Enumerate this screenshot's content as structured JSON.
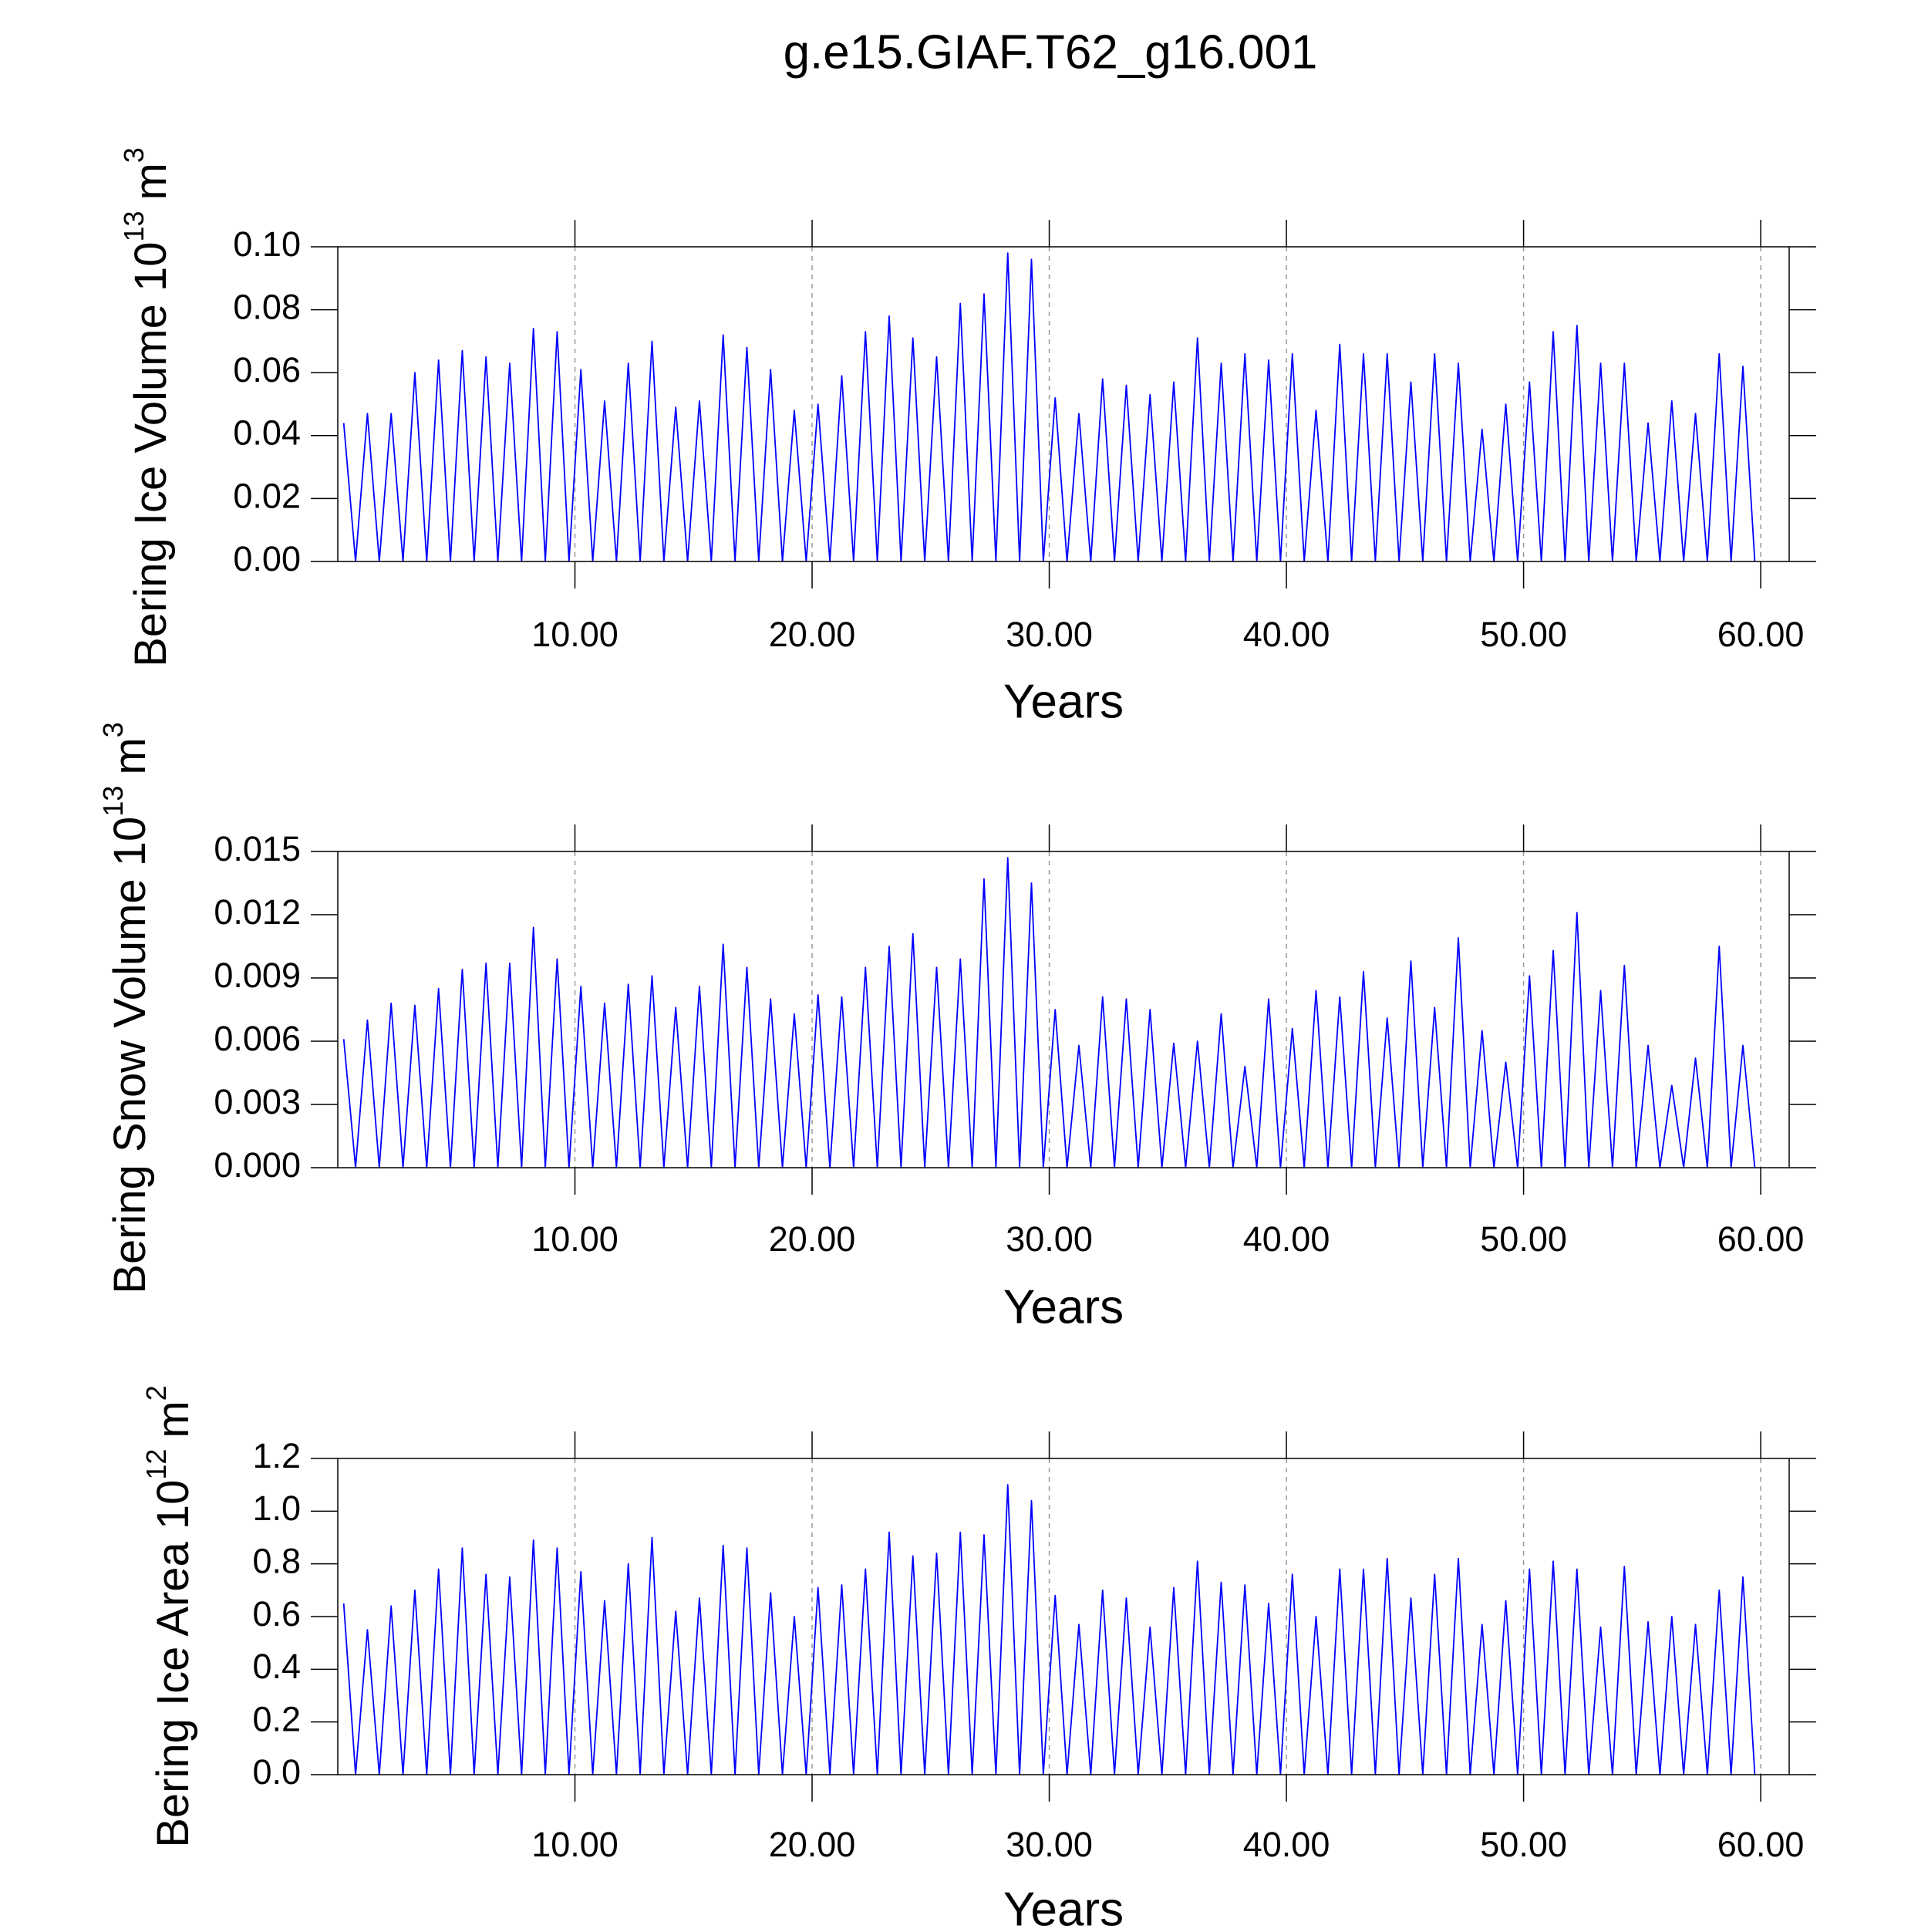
{
  "title": "g.e15.GIAF.T62_g16.001",
  "chart_data": [
    {
      "type": "line",
      "ylabel": "Bering Ice Volume 10",
      "ylabel_exp": "13",
      "ylabel_unit": "m",
      "ylabel_unit_exp": "3",
      "xlabel": "Years",
      "xlim": [
        0,
        61.2
      ],
      "ylim": [
        0,
        0.1
      ],
      "xticks": [
        {
          "value": 10,
          "label": "10.00"
        },
        {
          "value": 20,
          "label": "20.00"
        },
        {
          "value": 30,
          "label": "30.00"
        },
        {
          "value": 40,
          "label": "40.00"
        },
        {
          "value": 50,
          "label": "50.00"
        },
        {
          "value": 60,
          "label": "60.00"
        }
      ],
      "yticks": [
        {
          "value": 0,
          "label": "0.00"
        },
        {
          "value": 0.02,
          "label": "0.02"
        },
        {
          "value": 0.04,
          "label": "0.04"
        },
        {
          "value": 0.06,
          "label": "0.06"
        },
        {
          "value": 0.08,
          "label": "0.08"
        },
        {
          "value": 0.1,
          "label": "0.10"
        }
      ],
      "grid": true,
      "color": "#0000ff",
      "x": [
        0.25,
        0.75,
        1.25,
        1.75,
        2.25,
        2.75,
        3.25,
        3.75,
        4.25,
        4.75,
        5.25,
        5.75,
        6.25,
        6.75,
        7.25,
        7.75,
        8.25,
        8.75,
        9.25,
        9.75,
        10.25,
        10.75,
        11.25,
        11.75,
        12.25,
        12.75,
        13.25,
        13.75,
        14.25,
        14.75,
        15.25,
        15.75,
        16.25,
        16.75,
        17.25,
        17.75,
        18.25,
        18.75,
        19.25,
        19.75,
        20.25,
        20.75,
        21.25,
        21.75,
        22.25,
        22.75,
        23.25,
        23.75,
        24.25,
        24.75,
        25.25,
        25.75,
        26.25,
        26.75,
        27.25,
        27.75,
        28.25,
        28.75,
        29.25,
        29.75,
        30.25,
        30.75,
        31.25,
        31.75,
        32.25,
        32.75,
        33.25,
        33.75,
        34.25,
        34.75,
        35.25,
        35.75,
        36.25,
        36.75,
        37.25,
        37.75,
        38.25,
        38.75,
        39.25,
        39.75,
        40.25,
        40.75,
        41.25,
        41.75,
        42.25,
        42.75,
        43.25,
        43.75,
        44.25,
        44.75,
        45.25,
        45.75,
        46.25,
        46.75,
        47.25,
        47.75,
        48.25,
        48.75,
        49.25,
        49.75,
        50.25,
        50.75,
        51.25,
        51.75,
        52.25,
        52.75,
        53.25,
        53.75,
        54.25,
        54.75,
        55.25,
        55.75,
        56.25,
        56.75,
        57.25,
        57.75,
        58.25,
        58.75,
        59.25,
        59.75
      ],
      "values": [
        0.044,
        0,
        0.047,
        0,
        0.047,
        0,
        0.06,
        0,
        0.064,
        0,
        0.067,
        0,
        0.065,
        0,
        0.063,
        0,
        0.074,
        0,
        0.073,
        0,
        0.061,
        0,
        0.051,
        0,
        0.063,
        0,
        0.07,
        0,
        0.049,
        0,
        0.051,
        0,
        0.072,
        0,
        0.068,
        0,
        0.061,
        0,
        0.048,
        0,
        0.05,
        0,
        0.059,
        0,
        0.073,
        0,
        0.078,
        0,
        0.071,
        0,
        0.065,
        0,
        0.082,
        0,
        0.085,
        0,
        0.098,
        0,
        0.096,
        0,
        0.052,
        0,
        0.047,
        0,
        0.058,
        0,
        0.056,
        0,
        0.053,
        0,
        0.057,
        0,
        0.071,
        0,
        0.063,
        0,
        0.066,
        0,
        0.064,
        0,
        0.066,
        0,
        0.048,
        0,
        0.069,
        0,
        0.066,
        0,
        0.066,
        0,
        0.057,
        0,
        0.066,
        0,
        0.063,
        0,
        0.042,
        0,
        0.05,
        0,
        0.057,
        0,
        0.073,
        0,
        0.075,
        0,
        0.063,
        0,
        0.063,
        0,
        0.044,
        0,
        0.051,
        0,
        0.047,
        0,
        0.066,
        0,
        0.062,
        0
      ]
    },
    {
      "type": "line",
      "ylabel": "Bering Snow Volume 10",
      "ylabel_exp": "13",
      "ylabel_unit": "m",
      "ylabel_unit_exp": "3",
      "xlabel": "Years",
      "xlim": [
        0,
        61.2
      ],
      "ylim": [
        0,
        0.015
      ],
      "xticks": [
        {
          "value": 10,
          "label": "10.00"
        },
        {
          "value": 20,
          "label": "20.00"
        },
        {
          "value": 30,
          "label": "30.00"
        },
        {
          "value": 40,
          "label": "40.00"
        },
        {
          "value": 50,
          "label": "50.00"
        },
        {
          "value": 60,
          "label": "60.00"
        }
      ],
      "yticks": [
        {
          "value": 0,
          "label": "0.000"
        },
        {
          "value": 0.003,
          "label": "0.003"
        },
        {
          "value": 0.006,
          "label": "0.006"
        },
        {
          "value": 0.009,
          "label": "0.009"
        },
        {
          "value": 0.012,
          "label": "0.012"
        },
        {
          "value": 0.015,
          "label": "0.015"
        }
      ],
      "grid": true,
      "color": "#0000ff",
      "x": [
        0.25,
        0.75,
        1.25,
        1.75,
        2.25,
        2.75,
        3.25,
        3.75,
        4.25,
        4.75,
        5.25,
        5.75,
        6.25,
        6.75,
        7.25,
        7.75,
        8.25,
        8.75,
        9.25,
        9.75,
        10.25,
        10.75,
        11.25,
        11.75,
        12.25,
        12.75,
        13.25,
        13.75,
        14.25,
        14.75,
        15.25,
        15.75,
        16.25,
        16.75,
        17.25,
        17.75,
        18.25,
        18.75,
        19.25,
        19.75,
        20.25,
        20.75,
        21.25,
        21.75,
        22.25,
        22.75,
        23.25,
        23.75,
        24.25,
        24.75,
        25.25,
        25.75,
        26.25,
        26.75,
        27.25,
        27.75,
        28.25,
        28.75,
        29.25,
        29.75,
        30.25,
        30.75,
        31.25,
        31.75,
        32.25,
        32.75,
        33.25,
        33.75,
        34.25,
        34.75,
        35.25,
        35.75,
        36.25,
        36.75,
        37.25,
        37.75,
        38.25,
        38.75,
        39.25,
        39.75,
        40.25,
        40.75,
        41.25,
        41.75,
        42.25,
        42.75,
        43.25,
        43.75,
        44.25,
        44.75,
        45.25,
        45.75,
        46.25,
        46.75,
        47.25,
        47.75,
        48.25,
        48.75,
        49.25,
        49.75,
        50.25,
        50.75,
        51.25,
        51.75,
        52.25,
        52.75,
        53.25,
        53.75,
        54.25,
        54.75,
        55.25,
        55.75,
        56.25,
        56.75,
        57.25,
        57.75,
        58.25,
        58.75,
        59.25,
        59.75
      ],
      "values": [
        0.0061,
        0,
        0.007,
        0,
        0.0078,
        0,
        0.0077,
        0,
        0.0085,
        0,
        0.0094,
        0,
        0.0097,
        0,
        0.0097,
        0,
        0.0114,
        0,
        0.0099,
        0,
        0.0086,
        0,
        0.0078,
        0,
        0.0087,
        0,
        0.0091,
        0,
        0.0076,
        0,
        0.0086,
        0,
        0.0106,
        0,
        0.0095,
        0,
        0.008,
        0,
        0.0073,
        0,
        0.0082,
        0,
        0.0081,
        0,
        0.0095,
        0,
        0.0105,
        0,
        0.0111,
        0,
        0.0095,
        0,
        0.0099,
        0,
        0.0137,
        0,
        0.0147,
        0,
        0.0135,
        0,
        0.0075,
        0,
        0.0058,
        0,
        0.0081,
        0,
        0.008,
        0,
        0.0075,
        0,
        0.0059,
        0,
        0.006,
        0,
        0.0073,
        0,
        0.0048,
        0,
        0.008,
        0,
        0.0066,
        0,
        0.0084,
        0,
        0.0081,
        0,
        0.0093,
        0,
        0.0071,
        0,
        0.0098,
        0,
        0.0076,
        0,
        0.0109,
        0,
        0.0065,
        0,
        0.005,
        0,
        0.0091,
        0,
        0.0103,
        0,
        0.0121,
        0,
        0.0084,
        0,
        0.0096,
        0,
        0.0058,
        0,
        0.0039,
        0,
        0.0052,
        0,
        0.0105,
        0,
        0.0058,
        0
      ]
    },
    {
      "type": "line",
      "ylabel": "Bering Ice Area 10",
      "ylabel_exp": "12",
      "ylabel_unit": "m",
      "ylabel_unit_exp": "2",
      "xlabel": "Years",
      "xlim": [
        0,
        61.2
      ],
      "ylim": [
        0,
        1.2
      ],
      "xticks": [
        {
          "value": 10,
          "label": "10.00"
        },
        {
          "value": 20,
          "label": "20.00"
        },
        {
          "value": 30,
          "label": "30.00"
        },
        {
          "value": 40,
          "label": "40.00"
        },
        {
          "value": 50,
          "label": "50.00"
        },
        {
          "value": 60,
          "label": "60.00"
        }
      ],
      "yticks": [
        {
          "value": 0,
          "label": "0.0"
        },
        0.2,
        0.4,
        0.6,
        0.8,
        {
          "value": 1,
          "label": "1.0"
        },
        1.2
      ],
      "grid": true,
      "color": "#0000ff",
      "x": [
        0.25,
        0.75,
        1.25,
        1.75,
        2.25,
        2.75,
        3.25,
        3.75,
        4.25,
        4.75,
        5.25,
        5.75,
        6.25,
        6.75,
        7.25,
        7.75,
        8.25,
        8.75,
        9.25,
        9.75,
        10.25,
        10.75,
        11.25,
        11.75,
        12.25,
        12.75,
        13.25,
        13.75,
        14.25,
        14.75,
        15.25,
        15.75,
        16.25,
        16.75,
        17.25,
        17.75,
        18.25,
        18.75,
        19.25,
        19.75,
        20.25,
        20.75,
        21.25,
        21.75,
        22.25,
        22.75,
        23.25,
        23.75,
        24.25,
        24.75,
        25.25,
        25.75,
        26.25,
        26.75,
        27.25,
        27.75,
        28.25,
        28.75,
        29.25,
        29.75,
        30.25,
        30.75,
        31.25,
        31.75,
        32.25,
        32.75,
        33.25,
        33.75,
        34.25,
        34.75,
        35.25,
        35.75,
        36.25,
        36.75,
        37.25,
        37.75,
        38.25,
        38.75,
        39.25,
        39.75,
        40.25,
        40.75,
        41.25,
        41.75,
        42.25,
        42.75,
        43.25,
        43.75,
        44.25,
        44.75,
        45.25,
        45.75,
        46.25,
        46.75,
        47.25,
        47.75,
        48.25,
        48.75,
        49.25,
        49.75,
        50.25,
        50.75,
        51.25,
        51.75,
        52.25,
        52.75,
        53.25,
        53.75,
        54.25,
        54.75,
        55.25,
        55.75,
        56.25,
        56.75,
        57.25,
        57.75,
        58.25,
        58.75,
        59.25,
        59.75
      ],
      "values": [
        0.65,
        0,
        0.55,
        0,
        0.64,
        0,
        0.7,
        0,
        0.78,
        0,
        0.86,
        0,
        0.76,
        0,
        0.75,
        0,
        0.89,
        0,
        0.86,
        0,
        0.77,
        0,
        0.66,
        0,
        0.8,
        0,
        0.9,
        0,
        0.62,
        0,
        0.67,
        0,
        0.87,
        0,
        0.86,
        0,
        0.69,
        0,
        0.6,
        0,
        0.71,
        0,
        0.72,
        0,
        0.78,
        0,
        0.92,
        0,
        0.83,
        0,
        0.84,
        0,
        0.92,
        0,
        0.91,
        0,
        1.1,
        0,
        1.04,
        0,
        0.68,
        0,
        0.57,
        0,
        0.7,
        0,
        0.67,
        0,
        0.56,
        0,
        0.71,
        0,
        0.81,
        0,
        0.73,
        0,
        0.72,
        0,
        0.65,
        0,
        0.76,
        0,
        0.6,
        0,
        0.78,
        0,
        0.78,
        0,
        0.82,
        0,
        0.67,
        0,
        0.76,
        0,
        0.82,
        0,
        0.57,
        0,
        0.66,
        0,
        0.78,
        0,
        0.81,
        0,
        0.78,
        0,
        0.56,
        0,
        0.79,
        0,
        0.58,
        0,
        0.6,
        0,
        0.57,
        0,
        0.7,
        0,
        0.75,
        0
      ]
    }
  ]
}
